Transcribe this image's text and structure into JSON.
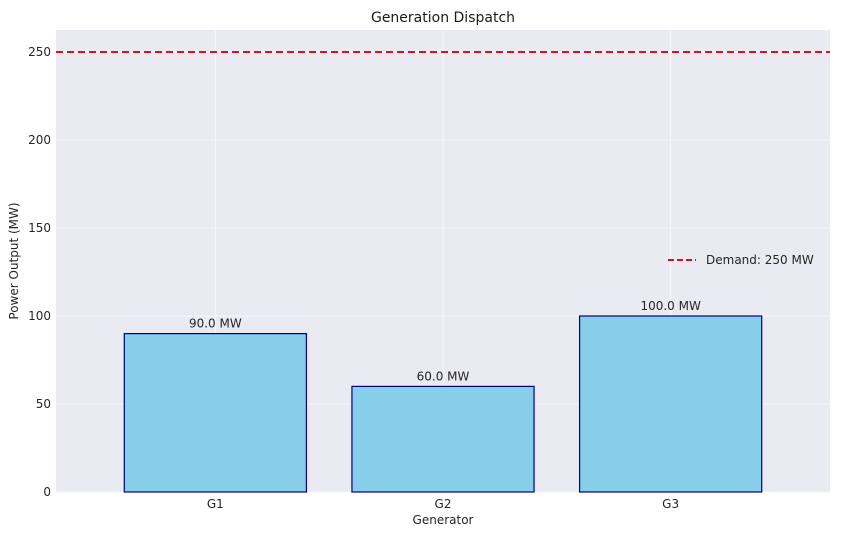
{
  "chart_data": {
    "type": "bar",
    "title": "Generation Dispatch",
    "xlabel": "Generator",
    "ylabel": "Power Output (MW)",
    "categories": [
      "G1",
      "G2",
      "G3"
    ],
    "values": [
      90,
      60,
      100
    ],
    "bar_labels": [
      "90.0 MW",
      "60.0 MW",
      "100.0 MW"
    ],
    "ylim": [
      0,
      262.5
    ],
    "yticks": [
      0,
      50,
      100,
      150,
      200,
      250
    ],
    "grid": true,
    "reference_line": {
      "value": 250,
      "label": "Demand: 250 MW",
      "style": "dashed"
    },
    "legend_position": "center-right"
  },
  "colors": {
    "plot_background": "#eaeaf2",
    "grid": "#f7f7fb",
    "bar_fill": "#87ceeb",
    "bar_edge": "#000080",
    "demand_line": "#e0101a"
  }
}
